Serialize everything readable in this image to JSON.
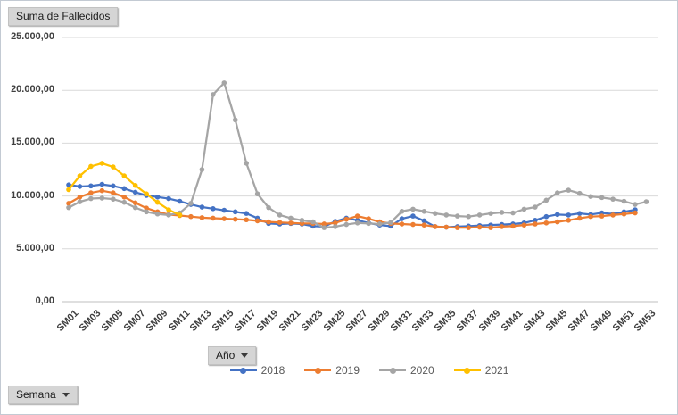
{
  "buttons": {
    "value_field": "Suma de Fallecidos",
    "legend_field": "Año",
    "axis_field": "Semana"
  },
  "axis": {
    "y_tick_labels": [
      "0,00",
      "5.000,00",
      "10.000,00",
      "15.000,00",
      "20.000,00",
      "25.000,00"
    ]
  },
  "legend": {
    "items": [
      {
        "label": "2018",
        "color": "#4472C4"
      },
      {
        "label": "2019",
        "color": "#ED7D31"
      },
      {
        "label": "2020",
        "color": "#A5A5A5"
      },
      {
        "label": "2021",
        "color": "#FFC000"
      }
    ]
  },
  "colors": {
    "gridline": "#d9d9d9",
    "axis_line": "#bfbfbf",
    "axis_text": "#3f3f3f"
  },
  "chart_data": {
    "type": "line",
    "title": "Suma de Fallecidos",
    "xlabel": "Semana",
    "ylabel": "Suma de Fallecidos",
    "ylim": [
      0,
      25000
    ],
    "y_tick_interval": 5000,
    "grid": true,
    "legend_position": "bottom",
    "marker": "circle",
    "categories": [
      "SM01",
      "SM02",
      "SM03",
      "SM04",
      "SM05",
      "SM06",
      "SM07",
      "SM08",
      "SM09",
      "SM10",
      "SM11",
      "SM12",
      "SM13",
      "SM14",
      "SM15",
      "SM16",
      "SM17",
      "SM18",
      "SM19",
      "SM20",
      "SM21",
      "SM22",
      "SM23",
      "SM24",
      "SM25",
      "SM26",
      "SM27",
      "SM28",
      "SM29",
      "SM30",
      "SM31",
      "SM32",
      "SM33",
      "SM34",
      "SM35",
      "SM36",
      "SM37",
      "SM38",
      "SM39",
      "SM40",
      "SM41",
      "SM42",
      "SM43",
      "SM44",
      "SM45",
      "SM46",
      "SM47",
      "SM48",
      "SM49",
      "SM50",
      "SM51",
      "SM52",
      "SM53"
    ],
    "series": [
      {
        "name": "2018",
        "color": "#4472C4",
        "values": [
          11050,
          10900,
          10950,
          11100,
          10950,
          10700,
          10350,
          10050,
          9900,
          9750,
          9500,
          9200,
          8950,
          8800,
          8650,
          8500,
          8350,
          7900,
          7400,
          7350,
          7400,
          7350,
          7150,
          7100,
          7600,
          7900,
          7700,
          7450,
          7250,
          7150,
          7850,
          8100,
          7650,
          7100,
          7050,
          7100,
          7150,
          7200,
          7250,
          7300,
          7350,
          7450,
          7700,
          8050,
          8250,
          8200,
          8350,
          8250,
          8400,
          8300,
          8500,
          8700
        ]
      },
      {
        "name": "2019",
        "color": "#ED7D31",
        "values": [
          9300,
          9900,
          10300,
          10500,
          10300,
          9900,
          9350,
          8850,
          8500,
          8250,
          8150,
          8050,
          7950,
          7900,
          7850,
          7800,
          7750,
          7650,
          7550,
          7500,
          7450,
          7400,
          7400,
          7350,
          7450,
          7800,
          8100,
          7850,
          7550,
          7400,
          7350,
          7300,
          7250,
          7100,
          7050,
          7000,
          7000,
          7050,
          7000,
          7100,
          7150,
          7250,
          7350,
          7450,
          7550,
          7700,
          7900,
          8050,
          8100,
          8200,
          8300,
          8400
        ]
      },
      {
        "name": "2020",
        "color": "#A5A5A5",
        "values": [
          8900,
          9450,
          9750,
          9800,
          9700,
          9400,
          8900,
          8500,
          8300,
          8200,
          8400,
          9300,
          12500,
          19600,
          20700,
          17200,
          13100,
          10200,
          8900,
          8200,
          7900,
          7700,
          7550,
          7000,
          7100,
          7300,
          7450,
          7400,
          7350,
          7500,
          8550,
          8750,
          8550,
          8350,
          8200,
          8100,
          8050,
          8200,
          8350,
          8450,
          8400,
          8750,
          8950,
          9600,
          10300,
          10550,
          10250,
          9950,
          9850,
          9700,
          9500,
          9200,
          9450
        ]
      },
      {
        "name": "2021",
        "color": "#FFC000",
        "values": [
          10600,
          11900,
          12800,
          13100,
          12750,
          11900,
          11000,
          10200,
          9400,
          8700,
          8200
        ]
      }
    ]
  }
}
